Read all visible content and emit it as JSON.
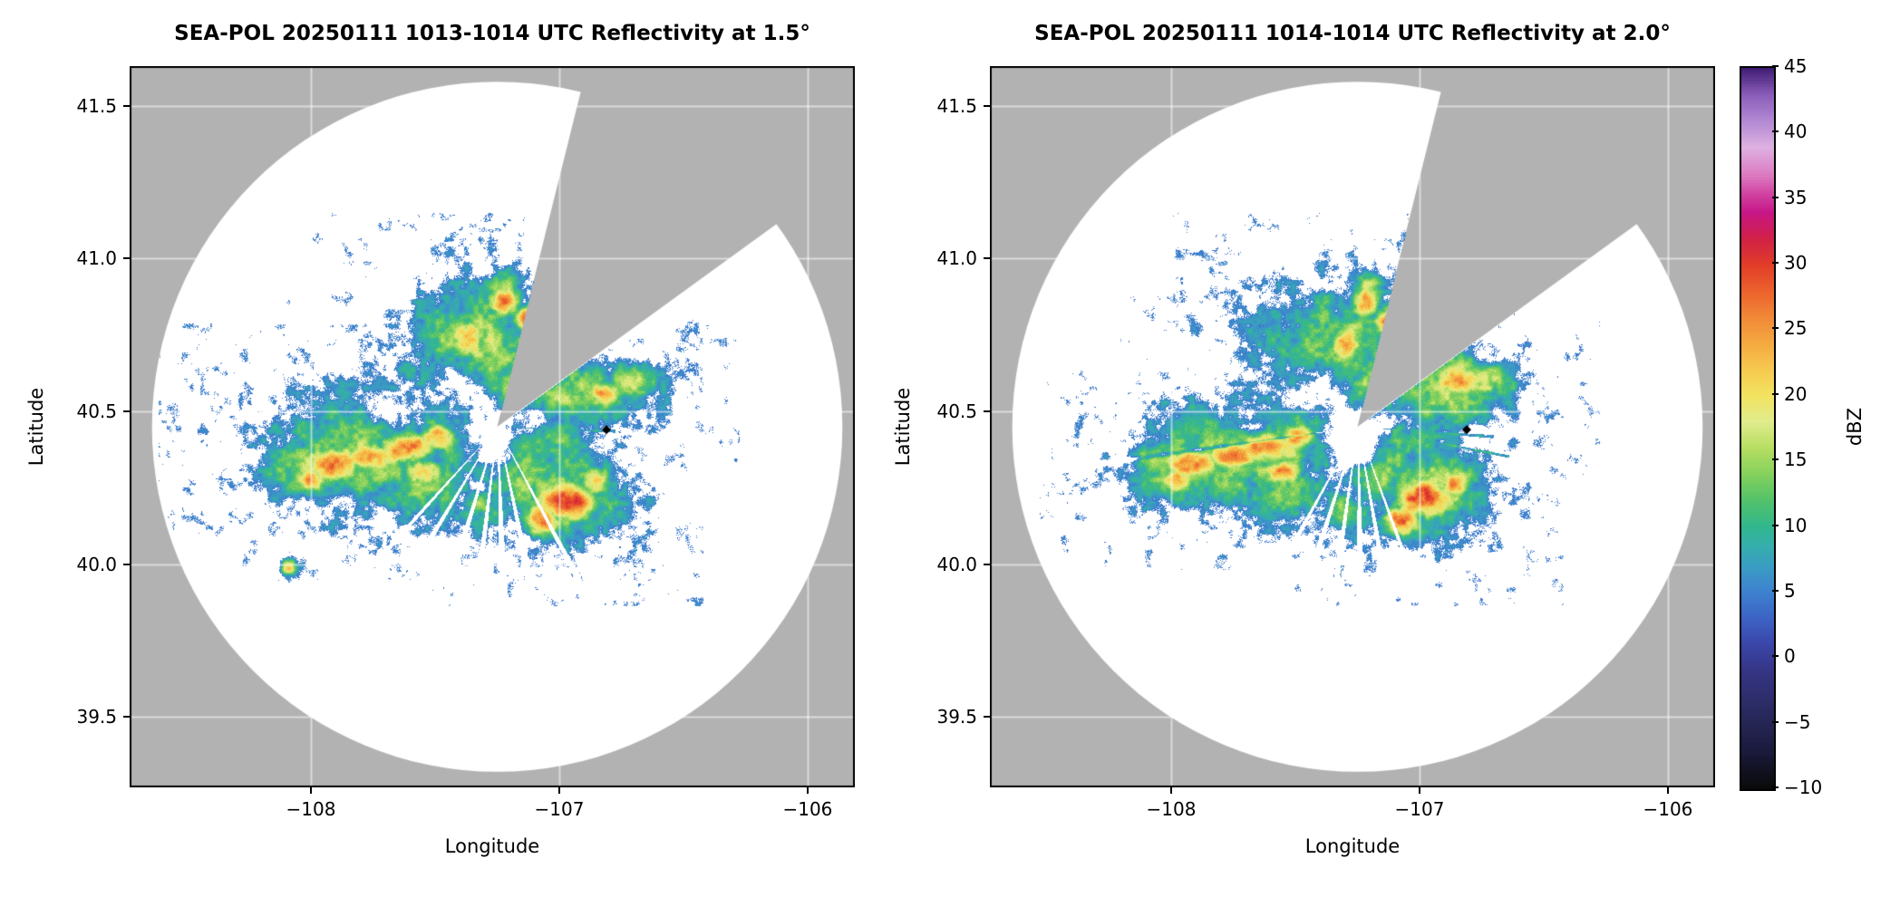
{
  "chart_data": {
    "type": "heatmap",
    "description": "Two SEA-POL radar PPI reflectivity maps (elevations 1.5 and 2.0 deg) on lon/lat axes with shared dBZ colorbar. Gray = outside radar coverage / blocked sector, white = coverage with no echo.",
    "panels": [
      {
        "title": "SEA-POL 20250111 1013-1014 UTC Reflectivity at 1.5°",
        "xlabel": "Longitude",
        "ylabel": "Latitude",
        "xlim": [
          -108.73,
          -105.81
        ],
        "ylim": [
          39.27,
          41.63
        ],
        "xticks": [
          -108,
          -107,
          -106
        ],
        "xtick_labels": [
          "−108",
          "−107",
          "−106"
        ],
        "yticks": [
          39.5,
          40.0,
          40.5,
          41.0,
          41.5
        ],
        "ytick_labels": [
          "39.5",
          "40.0",
          "40.5",
          "41.0",
          "41.5"
        ],
        "radar": {
          "center_lon": -107.25,
          "center_lat": 40.45,
          "range_deg_lon": 1.39,
          "blocked_sector_deg": [
            14,
            54
          ]
        },
        "marker": {
          "lon": -106.81,
          "lat": 40.44,
          "shape": "diamond",
          "color": "#000000"
        },
        "noise_seed": 3,
        "echo_blobs": [
          [
            -107.78,
            40.37,
            0.26,
            0.13,
            17
          ],
          [
            -107.5,
            40.46,
            0.22,
            0.13,
            15
          ],
          [
            -108.02,
            40.32,
            0.13,
            0.08,
            16
          ],
          [
            -107.35,
            40.7,
            0.2,
            0.14,
            16
          ],
          [
            -107.48,
            40.6,
            0.14,
            0.1,
            14
          ],
          [
            -107.16,
            40.58,
            0.16,
            0.09,
            15
          ],
          [
            -106.92,
            40.56,
            0.2,
            0.075,
            16
          ],
          [
            -106.72,
            40.6,
            0.1,
            0.05,
            15
          ],
          [
            -106.97,
            40.25,
            0.17,
            0.12,
            16
          ],
          [
            -107.17,
            40.3,
            0.13,
            0.1,
            14
          ],
          [
            -107.55,
            40.25,
            0.14,
            0.08,
            13
          ],
          [
            -107.3,
            40.18,
            0.1,
            0.06,
            12
          ],
          [
            -107.02,
            40.4,
            0.1,
            0.07,
            13
          ],
          [
            -108.09,
            39.99,
            0.025,
            0.02,
            22
          ],
          [
            -107.22,
            40.9,
            0.06,
            0.05,
            15
          ],
          [
            -107.05,
            40.68,
            0.07,
            0.05,
            14
          ],
          [
            -107.92,
            40.33,
            0.1,
            0.045,
            27
          ],
          [
            -107.76,
            40.355,
            0.09,
            0.04,
            26
          ],
          [
            -107.62,
            40.385,
            0.1,
            0.045,
            28
          ],
          [
            -107.49,
            40.42,
            0.07,
            0.04,
            25
          ],
          [
            -106.97,
            40.21,
            0.09,
            0.055,
            30
          ],
          [
            -107.07,
            40.145,
            0.06,
            0.04,
            26
          ],
          [
            -106.86,
            40.27,
            0.05,
            0.04,
            24
          ],
          [
            -107.37,
            40.73,
            0.055,
            0.05,
            26
          ],
          [
            -107.22,
            40.86,
            0.045,
            0.04,
            26
          ],
          [
            -107.13,
            40.8,
            0.04,
            0.035,
            27
          ],
          [
            -106.82,
            40.56,
            0.05,
            0.035,
            25
          ],
          [
            -107.55,
            40.305,
            0.06,
            0.035,
            24
          ],
          [
            -108.0,
            40.28,
            0.05,
            0.03,
            24
          ]
        ],
        "echo_dips": [
          [
            -107.56,
            40.52,
            0.12,
            0.06,
            -7
          ],
          [
            -107.36,
            40.56,
            0.1,
            0.06,
            -6
          ],
          [
            -107.32,
            40.44,
            0.08,
            0.05,
            -7
          ],
          [
            -107.25,
            40.37,
            0.05,
            0.045,
            -9
          ],
          [
            -107.7,
            40.46,
            0.1,
            0.05,
            -5
          ],
          [
            -107.44,
            40.64,
            0.09,
            0.05,
            -6
          ],
          [
            -107.1,
            40.5,
            0.06,
            0.04,
            -5
          ]
        ],
        "rays": [
          {
            "az": 152,
            "hw": 0.9,
            "mode": "blank"
          },
          {
            "az": 168,
            "hw": 1.2,
            "mode": "blank"
          },
          {
            "az": 178,
            "hw": 1.4,
            "mode": "blank"
          },
          {
            "az": 187,
            "hw": 1.2,
            "mode": "blank"
          },
          {
            "az": 197,
            "hw": 1.3,
            "mode": "blank"
          },
          {
            "az": 211,
            "hw": 1.0,
            "mode": "blank"
          },
          {
            "az": 222,
            "hw": 0.8,
            "mode": "blank"
          },
          {
            "az": 92,
            "hw": 0.7,
            "mode": "fill",
            "r0": 30,
            "r1": 130,
            "v": 8
          }
        ]
      },
      {
        "title": "SEA-POL 20250111 1014-1014 UTC Reflectivity at 2.0°",
        "xlabel": "Longitude",
        "ylabel": "Latitude",
        "xlim": [
          -108.73,
          -105.81
        ],
        "ylim": [
          39.27,
          41.63
        ],
        "xticks": [
          -108,
          -107,
          -106
        ],
        "xtick_labels": [
          "−108",
          "−107",
          "−106"
        ],
        "yticks": [
          39.5,
          40.0,
          40.5,
          41.0,
          41.5
        ],
        "ytick_labels": [
          "39.5",
          "40.0",
          "40.5",
          "41.0",
          "41.5"
        ],
        "radar": {
          "center_lon": -107.25,
          "center_lat": 40.45,
          "range_deg_lon": 1.39,
          "blocked_sector_deg": [
            14,
            54
          ]
        },
        "marker": {
          "lon": -106.81,
          "lat": 40.44,
          "shape": "diamond",
          "color": "#000000"
        },
        "noise_seed": 9,
        "echo_blobs": [
          [
            -107.76,
            40.37,
            0.24,
            0.12,
            17
          ],
          [
            -107.5,
            40.46,
            0.22,
            0.13,
            15
          ],
          [
            -108.0,
            40.32,
            0.12,
            0.08,
            16
          ],
          [
            -107.35,
            40.7,
            0.2,
            0.14,
            16
          ],
          [
            -107.48,
            40.6,
            0.14,
            0.1,
            14
          ],
          [
            -107.16,
            40.58,
            0.16,
            0.09,
            15
          ],
          [
            -106.92,
            40.57,
            0.2,
            0.09,
            16
          ],
          [
            -106.72,
            40.6,
            0.1,
            0.05,
            15
          ],
          [
            -106.97,
            40.25,
            0.17,
            0.12,
            16
          ],
          [
            -107.17,
            40.3,
            0.13,
            0.1,
            14
          ],
          [
            -107.55,
            40.25,
            0.14,
            0.08,
            13
          ],
          [
            -107.3,
            40.18,
            0.1,
            0.06,
            12
          ],
          [
            -107.02,
            40.4,
            0.1,
            0.07,
            13
          ],
          [
            -108.12,
            40.35,
            0.022,
            0.02,
            14
          ],
          [
            -107.22,
            40.9,
            0.06,
            0.05,
            15
          ],
          [
            -107.05,
            40.68,
            0.07,
            0.05,
            14
          ],
          [
            -107.92,
            40.33,
            0.1,
            0.045,
            27
          ],
          [
            -107.76,
            40.355,
            0.09,
            0.04,
            26
          ],
          [
            -107.62,
            40.385,
            0.1,
            0.045,
            28
          ],
          [
            -107.49,
            40.42,
            0.07,
            0.04,
            25
          ],
          [
            -106.98,
            40.22,
            0.09,
            0.055,
            30
          ],
          [
            -107.07,
            40.145,
            0.06,
            0.04,
            26
          ],
          [
            -106.86,
            40.27,
            0.05,
            0.04,
            24
          ],
          [
            -107.3,
            40.72,
            0.055,
            0.05,
            26
          ],
          [
            -107.22,
            40.86,
            0.045,
            0.04,
            26
          ],
          [
            -107.13,
            40.8,
            0.04,
            0.035,
            27
          ],
          [
            -106.85,
            40.61,
            0.08,
            0.05,
            26
          ],
          [
            -107.55,
            40.305,
            0.06,
            0.035,
            24
          ],
          [
            -107.98,
            40.28,
            0.05,
            0.03,
            24
          ]
        ],
        "echo_dips": [
          [
            -107.56,
            40.52,
            0.12,
            0.06,
            -7
          ],
          [
            -107.36,
            40.56,
            0.1,
            0.06,
            -6
          ],
          [
            -107.32,
            40.44,
            0.08,
            0.05,
            -7
          ],
          [
            -107.25,
            40.37,
            0.05,
            0.045,
            -9
          ],
          [
            -107.7,
            40.46,
            0.1,
            0.05,
            -5
          ],
          [
            -107.44,
            40.64,
            0.09,
            0.05,
            -6
          ],
          [
            -107.1,
            40.5,
            0.06,
            0.04,
            -5
          ],
          [
            -107.28,
            40.4,
            0.05,
            0.05,
            -12
          ]
        ],
        "rays": [
          {
            "az": 160,
            "hw": 0.8,
            "mode": "blank"
          },
          {
            "az": 170,
            "hw": 1.1,
            "mode": "blank"
          },
          {
            "az": 179,
            "hw": 1.3,
            "mode": "blank"
          },
          {
            "az": 188,
            "hw": 1.1,
            "mode": "blank"
          },
          {
            "az": 198,
            "hw": 1.2,
            "mode": "blank"
          },
          {
            "az": 209,
            "hw": 0.9,
            "mode": "blank"
          },
          {
            "az": 94,
            "hw": 0.7,
            "mode": "fill",
            "r0": 28,
            "r1": 150,
            "v": 8
          },
          {
            "az": 101,
            "hw": 0.5,
            "mode": "fill",
            "r0": 60,
            "r1": 170,
            "v": 10
          },
          {
            "az": 262,
            "hw": 1.0,
            "mode": "low",
            "d": 8
          }
        ]
      }
    ],
    "colorbar": {
      "label": "dBZ",
      "min": -10,
      "max": 45,
      "ticks": [
        45,
        40,
        35,
        30,
        25,
        20,
        15,
        10,
        5,
        0,
        -5,
        -10
      ],
      "tick_labels": [
        "45",
        "40",
        "35",
        "30",
        "25",
        "20",
        "15",
        "10",
        "5",
        "0",
        "−5",
        "−10"
      ],
      "stops": [
        [
          -10,
          "#0a0a0a"
        ],
        [
          -7,
          "#1b1b3e"
        ],
        [
          -4,
          "#2a2a60"
        ],
        [
          -1,
          "#353585"
        ],
        [
          1,
          "#3a46a8"
        ],
        [
          3,
          "#3c63c5"
        ],
        [
          5,
          "#3e81cf"
        ],
        [
          7,
          "#3a9dc3"
        ],
        [
          8.5,
          "#35aeae"
        ],
        [
          10,
          "#31b78d"
        ],
        [
          12,
          "#53c26a"
        ],
        [
          14,
          "#84d15d"
        ],
        [
          16,
          "#b6de61"
        ],
        [
          18,
          "#e0ec8d"
        ],
        [
          20,
          "#f2e360"
        ],
        [
          22,
          "#f6c94f"
        ],
        [
          24,
          "#f4a940"
        ],
        [
          26,
          "#f18837"
        ],
        [
          28,
          "#ec612d"
        ],
        [
          30,
          "#e13c28"
        ],
        [
          32,
          "#d12147"
        ],
        [
          34,
          "#c71687"
        ],
        [
          35.5,
          "#d247a3"
        ],
        [
          37,
          "#dc7fc3"
        ],
        [
          39,
          "#ddb1e1"
        ],
        [
          41,
          "#b288d3"
        ],
        [
          43,
          "#8a5cb9"
        ],
        [
          45,
          "#3f1d73"
        ]
      ]
    },
    "colors": {
      "background": "#ffffff",
      "no_data_gray": "#b2b2b2",
      "grid": "rgba(255,255,255,0.55)",
      "axes": "#000000"
    }
  }
}
